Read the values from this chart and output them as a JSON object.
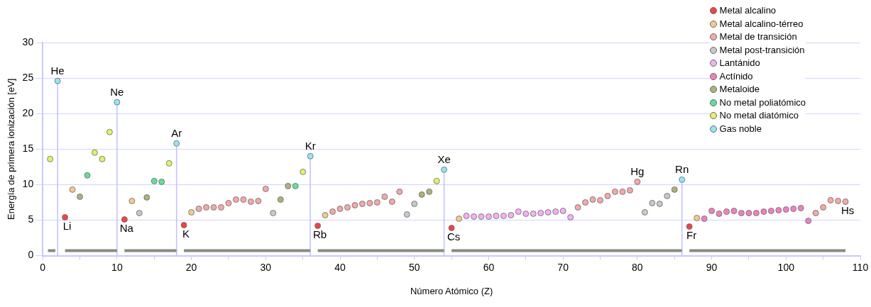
{
  "chart_data": {
    "type": "scatter",
    "xlabel": "Número Atómico (Z)",
    "ylabel": "Energía de primera ionización [eV]",
    "xlim": [
      0,
      110
    ],
    "ylim": [
      0,
      30
    ],
    "xticks": [
      0,
      {
        "value": 5,
        "label": null
      },
      10,
      {
        "value": 15,
        "label": null
      },
      20,
      {
        "value": 25,
        "label": null
      },
      30,
      {
        "value": 35,
        "label": null
      },
      40,
      {
        "value": 45,
        "label": null
      },
      50,
      {
        "value": 55,
        "label": null
      },
      60,
      {
        "value": 65,
        "label": null
      },
      70,
      {
        "value": 75,
        "label": null
      },
      80,
      {
        "value": 85,
        "label": null
      },
      90,
      {
        "value": 95,
        "label": null
      },
      100,
      {
        "value": 105,
        "label": null
      },
      110
    ],
    "yticks": [
      0,
      5,
      10,
      15,
      20,
      25,
      30
    ],
    "grid": "y",
    "legend": "top right",
    "marker": "circle",
    "series": [
      {
        "type": "line",
        "marker": "none",
        "color": "#888888",
        "x": [
          0.7,
          1.7,
          null,
          3,
          10,
          null,
          11,
          18,
          null,
          19,
          36,
          null,
          37,
          54,
          null,
          55,
          86,
          null,
          87,
          108
        ],
        "values": [
          0.7,
          0.7,
          null,
          0.7,
          0.7,
          null,
          0.7,
          0.7,
          null,
          0.7,
          0.7,
          null,
          0.7,
          0.7,
          null,
          0.7,
          0.7,
          null,
          0.7,
          0.7
        ]
      },
      {
        "type": "line",
        "marker": "none",
        "color": "#c0c0ff",
        "x": [
          2,
          2,
          null,
          10,
          10,
          null,
          18,
          18,
          null,
          36,
          36,
          null,
          54,
          54,
          null,
          86,
          86
        ],
        "values": [
          0,
          24.6,
          null,
          0,
          21.6,
          null,
          0,
          15.8,
          null,
          0,
          14.0,
          null,
          0,
          12.1,
          null,
          0,
          10.7
        ]
      },
      {
        "type": "scatter",
        "name": "Metal alcalino",
        "color": "#ee4444",
        "x": [
          3,
          11,
          19,
          37,
          55,
          87
        ],
        "values": [
          5.4,
          5.1,
          4.3,
          4.2,
          3.9,
          4.1
        ]
      },
      {
        "type": "scatter",
        "name": "Metal alcalino-térreo",
        "color": "#f5c890",
        "x": [
          4,
          12,
          20,
          38,
          56,
          88
        ],
        "values": [
          9.3,
          7.7,
          6.1,
          5.7,
          5.2,
          5.3
        ]
      },
      {
        "type": "scatter",
        "name": "Metal de transición",
        "color": "#f4a8a8",
        "x": [
          21,
          22,
          23,
          24,
          25,
          26,
          27,
          28,
          29,
          30,
          39,
          40,
          41,
          42,
          43,
          44,
          45,
          46,
          47,
          48,
          72,
          73,
          74,
          75,
          76,
          77,
          78,
          79,
          80,
          104,
          105,
          106,
          107,
          108
        ],
        "values": [
          6.6,
          6.8,
          6.8,
          6.8,
          7.4,
          7.9,
          7.9,
          7.6,
          7.7,
          9.4,
          6.2,
          6.6,
          6.8,
          7.1,
          7.3,
          7.4,
          7.5,
          8.3,
          7.6,
          9.0,
          6.8,
          7.5,
          7.9,
          7.8,
          8.4,
          9.0,
          9.0,
          9.2,
          10.4,
          6.0,
          6.8,
          7.8,
          7.7,
          7.6
        ]
      },
      {
        "type": "scatter",
        "name": "Metal post-transición",
        "color": "#c8c8c8",
        "x": [
          13,
          31,
          49,
          50,
          81,
          82,
          83,
          84
        ],
        "values": [
          6.0,
          6.0,
          5.8,
          7.3,
          6.1,
          7.4,
          7.3,
          8.4
        ]
      },
      {
        "type": "scatter",
        "name": "Lantánido",
        "color": "#f4b0f4",
        "x": [
          57,
          58,
          59,
          60,
          61,
          62,
          63,
          64,
          65,
          66,
          67,
          68,
          69,
          70,
          71
        ],
        "values": [
          5.6,
          5.5,
          5.5,
          5.5,
          5.6,
          5.6,
          5.7,
          6.2,
          5.9,
          5.9,
          6.0,
          6.1,
          6.2,
          6.3,
          5.4
        ]
      },
      {
        "type": "scatter",
        "name": "Actínido",
        "color": "#f080c0",
        "x": [
          89,
          90,
          91,
          92,
          93,
          94,
          95,
          96,
          97,
          98,
          99,
          100,
          101,
          102,
          103
        ],
        "values": [
          5.2,
          6.3,
          5.9,
          6.2,
          6.3,
          6.0,
          6.0,
          6.0,
          6.2,
          6.3,
          6.4,
          6.5,
          6.6,
          6.7,
          4.9
        ]
      },
      {
        "type": "scatter",
        "name": "Metaloide",
        "color": "#b0b080",
        "x": [
          5,
          14,
          32,
          33,
          51,
          52,
          85
        ],
        "values": [
          8.3,
          8.2,
          7.9,
          9.8,
          8.6,
          9.0,
          9.3
        ]
      },
      {
        "type": "scatter",
        "name": "No metal poliatómico",
        "color": "#60e098",
        "x": [
          6,
          15,
          16,
          34
        ],
        "values": [
          11.3,
          10.5,
          10.4,
          9.8
        ]
      },
      {
        "type": "scatter",
        "name": "No metal diatómico",
        "color": "#e4f068",
        "x": [
          1,
          7,
          8,
          9,
          17,
          35,
          53
        ],
        "values": [
          13.6,
          14.5,
          13.6,
          17.4,
          13.0,
          11.8,
          10.5
        ]
      },
      {
        "type": "scatter",
        "name": "Gas noble",
        "color": "#90e8f4",
        "x": [
          2,
          10,
          18,
          36,
          54,
          86
        ],
        "values": [
          24.6,
          21.6,
          15.8,
          14.0,
          12.1,
          10.7
        ]
      }
    ],
    "annotations": [
      {
        "text": "He",
        "x": 2,
        "y": 24.6
      },
      {
        "text": "Ne",
        "x": 10,
        "y": 21.6
      },
      {
        "text": "Ar",
        "x": 18,
        "y": 15.8
      },
      {
        "text": "Kr",
        "x": 36,
        "y": 14.0
      },
      {
        "text": "Xe",
        "x": 54,
        "y": 12.1
      },
      {
        "text": "Hg",
        "x": 80,
        "y": 10.4
      },
      {
        "text": "Rn",
        "x": 86,
        "y": 10.7
      },
      {
        "text": "Li",
        "x": 3,
        "y": 5.4
      },
      {
        "text": "Na",
        "x": 11,
        "y": 5.1
      },
      {
        "text": "K",
        "x": 19,
        "y": 4.3
      },
      {
        "text": "Rb",
        "x": 37,
        "y": 4.2
      },
      {
        "text": "Cs",
        "x": 55,
        "y": 3.9
      },
      {
        "text": "Fr",
        "x": 87,
        "y": 4.1
      },
      {
        "text": "Hs",
        "x": 108,
        "y": 7.6
      }
    ]
  }
}
